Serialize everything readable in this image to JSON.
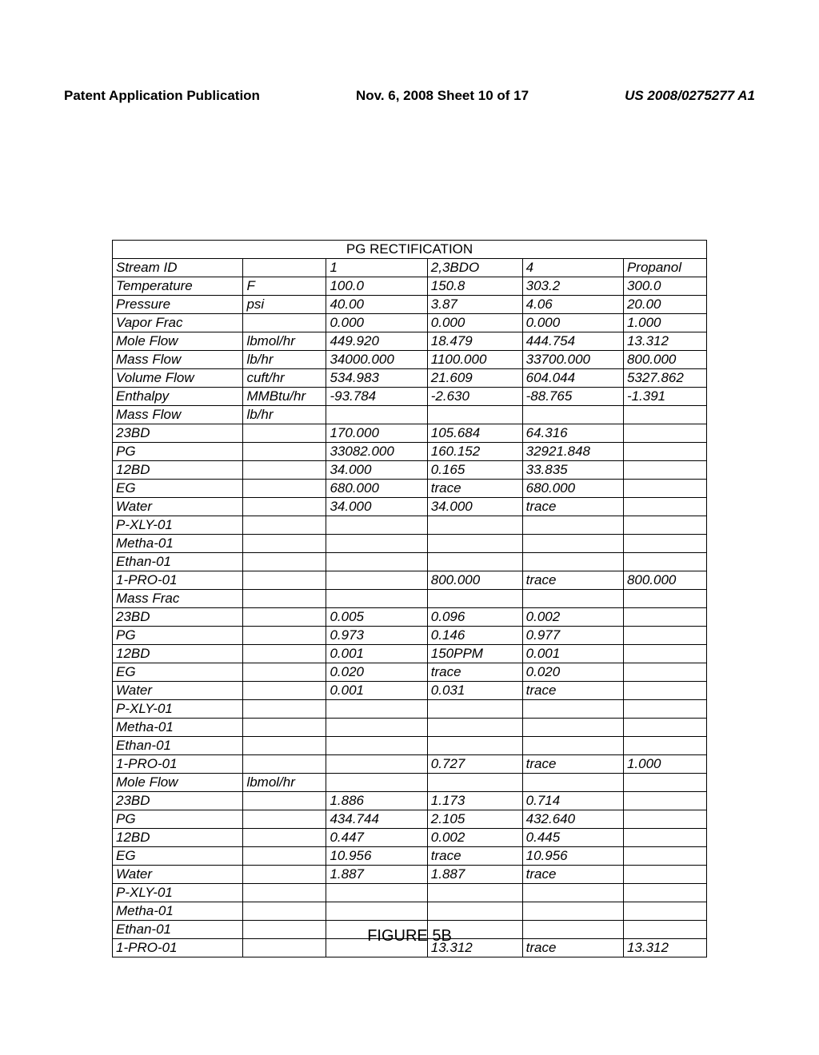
{
  "header": {
    "left": "Patent Application Publication",
    "center": "Nov. 6, 2008  Sheet 10 of 17",
    "right": "US 2008/0275277 A1"
  },
  "table": {
    "title": "PG RECTIFICATION",
    "columns": [
      "",
      "",
      "1",
      "2,3BDO",
      "4",
      "Propanol"
    ],
    "rows": [
      [
        "Stream ID",
        "",
        "1",
        "2,3BDO",
        "4",
        "Propanol"
      ],
      [
        "Temperature",
        "F",
        "100.0",
        "150.8",
        "303.2",
        "300.0"
      ],
      [
        "Pressure",
        "psi",
        "40.00",
        "3.87",
        "4.06",
        "20.00"
      ],
      [
        "Vapor Frac",
        "",
        "0.000",
        "0.000",
        "0.000",
        "1.000"
      ],
      [
        "Mole Flow",
        "lbmol/hr",
        "449.920",
        "18.479",
        "444.754",
        "13.312"
      ],
      [
        "Mass Flow",
        "lb/hr",
        "34000.000",
        "1100.000",
        "33700.000",
        "800.000"
      ],
      [
        "Volume Flow",
        "cuft/hr",
        "534.983",
        "21.609",
        "604.044",
        "5327.862"
      ],
      [
        "Enthalpy",
        "MMBtu/hr",
        "-93.784",
        "-2.630",
        "-88.765",
        "-1.391"
      ],
      [
        "Mass Flow",
        "lb/hr",
        "",
        "",
        "",
        ""
      ],
      [
        "23BD",
        "",
        "170.000",
        "105.684",
        "64.316",
        ""
      ],
      [
        "PG",
        "",
        "33082.000",
        "160.152",
        "32921.848",
        ""
      ],
      [
        "12BD",
        "",
        "34.000",
        "0.165",
        "33.835",
        ""
      ],
      [
        "EG",
        "",
        "680.000",
        "trace",
        "680.000",
        ""
      ],
      [
        "Water",
        "",
        "34.000",
        "34.000",
        "trace",
        ""
      ],
      [
        "P-XLY-01",
        "",
        "",
        "",
        "",
        ""
      ],
      [
        "Metha-01",
        "",
        "",
        "",
        "",
        ""
      ],
      [
        "Ethan-01",
        "",
        "",
        "",
        "",
        ""
      ],
      [
        "1-PRO-01",
        "",
        "",
        "800.000",
        "trace",
        "800.000"
      ],
      [
        "Mass Frac",
        "",
        "",
        "",
        "",
        ""
      ],
      [
        "23BD",
        "",
        "0.005",
        "0.096",
        "0.002",
        ""
      ],
      [
        "PG",
        "",
        "0.973",
        "0.146",
        "0.977",
        ""
      ],
      [
        "12BD",
        "",
        "0.001",
        "150PPM",
        "0.001",
        ""
      ],
      [
        "EG",
        "",
        "0.020",
        "trace",
        "0.020",
        ""
      ],
      [
        "Water",
        "",
        "0.001",
        "0.031",
        "trace",
        ""
      ],
      [
        "P-XLY-01",
        "",
        "",
        "",
        "",
        ""
      ],
      [
        "Metha-01",
        "",
        "",
        "",
        "",
        ""
      ],
      [
        "Ethan-01",
        "",
        "",
        "",
        "",
        ""
      ],
      [
        "1-PRO-01",
        "",
        "",
        "0.727",
        "trace",
        "1.000"
      ],
      [
        "Mole Flow",
        "lbmol/hr",
        "",
        "",
        "",
        ""
      ],
      [
        "23BD",
        "",
        "1.886",
        "1.173",
        "0.714",
        ""
      ],
      [
        "PG",
        "",
        "434.744",
        "2.105",
        "432.640",
        ""
      ],
      [
        "12BD",
        "",
        "0.447",
        "0.002",
        "0.445",
        ""
      ],
      [
        "EG",
        "",
        "10.956",
        "trace",
        "10.956",
        ""
      ],
      [
        "Water",
        "",
        "1.887",
        "1.887",
        "trace",
        ""
      ],
      [
        "P-XLY-01",
        "",
        "",
        "",
        "",
        ""
      ],
      [
        "Metha-01",
        "",
        "",
        "",
        "",
        ""
      ],
      [
        "Ethan-01",
        "",
        "",
        "",
        "",
        ""
      ],
      [
        "1-PRO-01",
        "",
        "",
        "13.312",
        "trace",
        "13.312"
      ]
    ]
  },
  "figure_caption": "FIGURE 5B"
}
